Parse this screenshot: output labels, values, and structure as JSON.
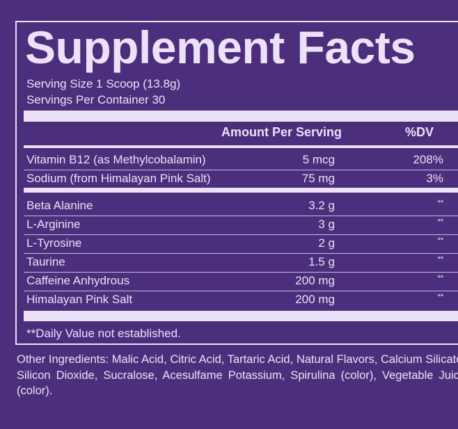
{
  "title": "Supplement Facts",
  "serving_size": "Serving Size 1 Scoop (13.8g)",
  "servings_per_container": "Servings Per Container 30",
  "header": {
    "amount": "Amount Per Serving",
    "dv": "%DV"
  },
  "vitamins": [
    {
      "name": "Vitamin B12 (as Methylcobalamin)",
      "amount": "5 mcg",
      "dv": "208%"
    },
    {
      "name": "Sodium (from Himalayan Pink Salt)",
      "amount": "75 mg",
      "dv": "3%"
    }
  ],
  "ingredients": [
    {
      "name": "Beta Alanine",
      "amount": "3.2 g",
      "dv": "**"
    },
    {
      "name": "L-Arginine",
      "amount": "3 g",
      "dv": "**"
    },
    {
      "name": "L-Tyrosine",
      "amount": "2 g",
      "dv": "**"
    },
    {
      "name": "Taurine",
      "amount": "1.5 g",
      "dv": "**"
    },
    {
      "name": "Caffeine Anhydrous",
      "amount": "200 mg",
      "dv": "**"
    },
    {
      "name": "Himalayan Pink Salt",
      "amount": "200 mg",
      "dv": "**"
    }
  ],
  "footnote": "**Daily Value not established.",
  "other_ingredients": "Other Ingredients: Malic Acid, Citric Acid, Tartaric Acid, Natural Flavors, Calcium Silicate, Silicon Dioxide, Sucralose, Acesulfame Potassium, Spirulina (color), Vegetable Juice (color)."
}
